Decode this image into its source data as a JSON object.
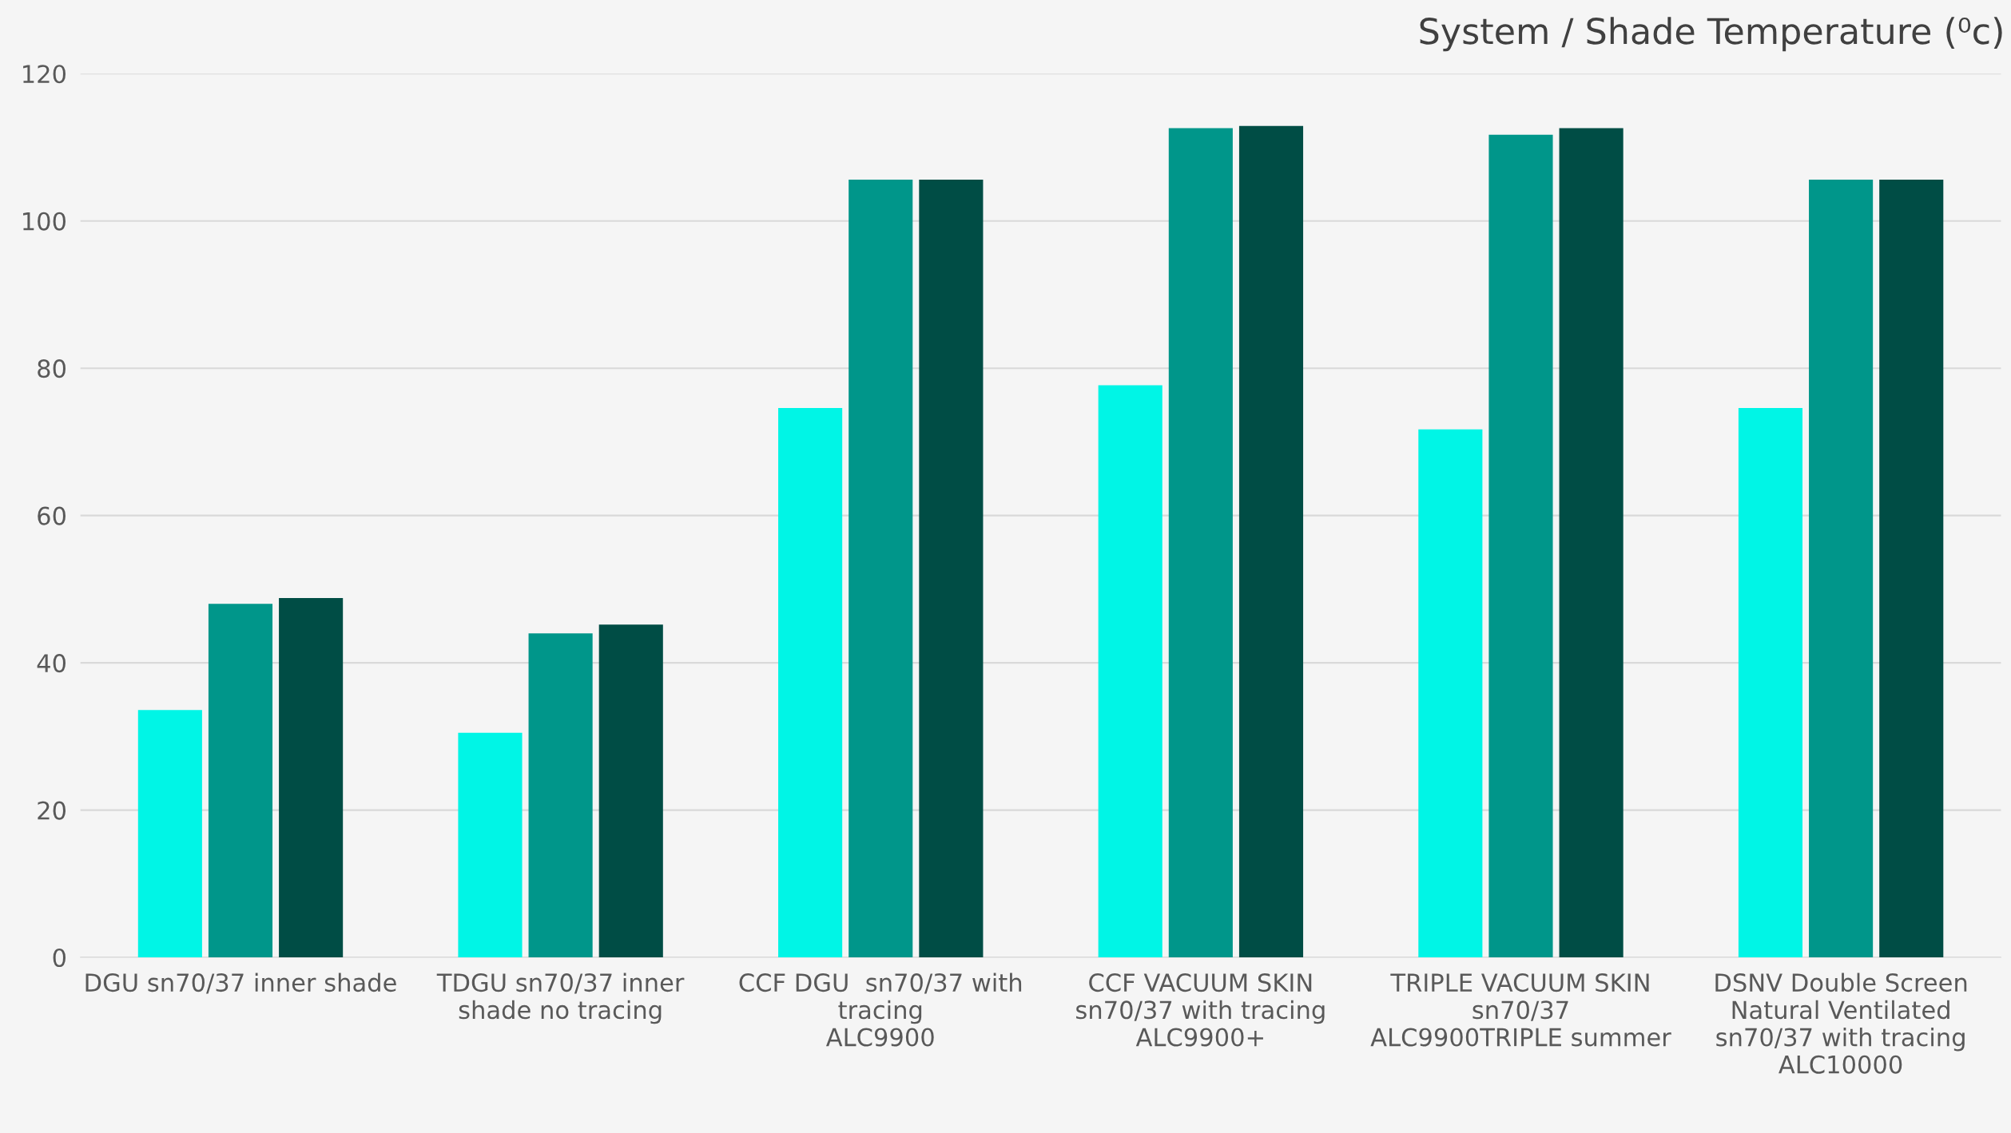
{
  "chart_data": {
    "type": "bar",
    "title": "System / Shade Temperature (⁰c)",
    "categories": [
      "DGU sn70/37 inner shade",
      "TDGU sn70/37 inner\nshade no tracing",
      "CCF DGU  sn70/37 with\ntracing\nALC9900",
      "CCF VACUUM SKIN\nsn70/37 with tracing\nALC9900+",
      "TRIPLE VACUUM SKIN\nsn70/37\nALC9900TRIPLE summer",
      "DSNV Double Screen\nNatural Ventilated\nsn70/37 with tracing\nALC10000"
    ],
    "series": [
      {
        "color": "#00f5e6",
        "values": [
          33.6,
          30.5,
          74.6,
          77.7,
          71.7,
          74.6
        ]
      },
      {
        "color": "#00968a",
        "values": [
          48.0,
          44.0,
          105.6,
          112.6,
          111.7,
          105.6
        ]
      },
      {
        "color": "#004d45",
        "values": [
          48.8,
          45.2,
          105.6,
          112.9,
          112.6,
          105.6
        ]
      }
    ],
    "ylim": [
      0,
      120
    ],
    "yticks": [
      0,
      20,
      40,
      60,
      80,
      100,
      120
    ],
    "grid": "y"
  }
}
